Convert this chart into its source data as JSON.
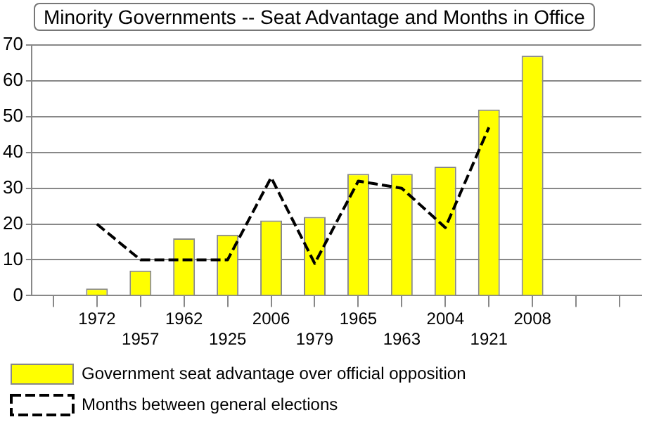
{
  "chart_data": {
    "type": "bar",
    "title": "Minority Governments -- Seat Advantage and Months in Office",
    "categories": [
      null,
      "1972",
      "1957",
      "1962",
      "1925",
      "2006",
      "1979",
      "1965",
      "1963",
      "2004",
      "1921",
      "2008",
      null,
      null
    ],
    "series": [
      {
        "name": "Government seat advantage over official opposition",
        "color": "#ffff00",
        "values": [
          null,
          2,
          7,
          16,
          17,
          21,
          22,
          34,
          34,
          36,
          52,
          67,
          null,
          null
        ]
      },
      {
        "name": "Months between general elections",
        "type": "line",
        "color": "#000000",
        "line_style": "dashed",
        "values": [
          null,
          20,
          10,
          10,
          10,
          33,
          9,
          32,
          30,
          19,
          47,
          null,
          null,
          null
        ]
      }
    ],
    "ylim": [
      0,
      70
    ],
    "yticks": [
      0,
      10,
      20,
      30,
      40,
      50,
      60,
      70
    ],
    "grid": "y",
    "legend": "bottom",
    "marker": "none"
  }
}
